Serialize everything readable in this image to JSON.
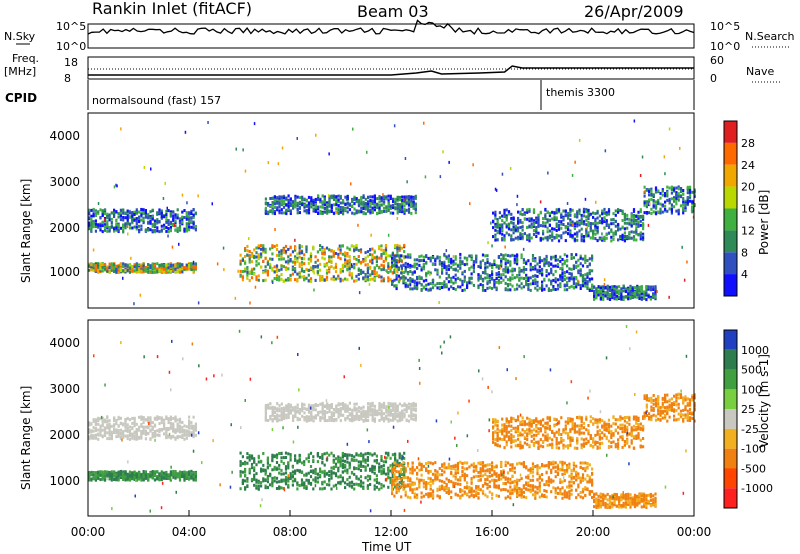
{
  "header": {
    "title": "Rankin Inlet (fitACF)",
    "beam": "Beam 03",
    "date": "26/Apr/2009"
  },
  "params_panel": {
    "nsky_label": "N.Sky",
    "nsky_ticks": [
      "10^5",
      "10^0"
    ],
    "nsearch_label": "N.Search",
    "nsearch_ticks": [
      "10^5",
      "10^0"
    ],
    "freq_label": "Freq.",
    "freq_unit": "[MHz]",
    "freq_ticks": [
      "18",
      "8"
    ],
    "nave_label": "Nave",
    "nave_ticks": [
      "60",
      "0"
    ],
    "cpid_label": "CPID",
    "cpid_segments": [
      {
        "text": "normalsound (fast) 157",
        "start_hour": 0
      },
      {
        "text": "themis 3300",
        "start_hour": 18
      }
    ]
  },
  "chart_data": [
    {
      "type": "heatmap",
      "title": "",
      "ylabel": "Slant Range [km]",
      "xlabel": "",
      "xlim": [
        0,
        24
      ],
      "ylim": [
        180,
        4500
      ],
      "ytick_labels": [
        "1000",
        "2000",
        "3000",
        "4000"
      ],
      "colorbar": {
        "label": "Power [dB]",
        "tick_labels": [
          "28",
          "24",
          "20",
          "16",
          "12",
          "8",
          "4"
        ],
        "colors": [
          "#e02020",
          "#ff6a00",
          "#f0a800",
          "#b8d800",
          "#40b040",
          "#2e8b57",
          "#3050c0",
          "#1010ff"
        ]
      }
    },
    {
      "type": "heatmap",
      "title": "",
      "ylabel": "Slant Range [km]",
      "xlabel": "Time UT",
      "xlim": [
        0,
        24
      ],
      "ylim": [
        180,
        4500
      ],
      "ytick_labels": [
        "1000",
        "2000",
        "3000",
        "4000"
      ],
      "xtick_labels": [
        "00:00",
        "04:00",
        "08:00",
        "12:00",
        "16:00",
        "20:00",
        "00:00"
      ],
      "colorbar": {
        "label": "Velocity [m s-1]",
        "tick_labels": [
          "1000",
          "500",
          "100",
          "25",
          "-25",
          "-100",
          "-500",
          "-1000"
        ],
        "colors": [
          "#2040c0",
          "#2e7d4f",
          "#40a040",
          "#78d040",
          "#c8c8c0",
          "#f0b020",
          "#f08010",
          "#ff4500",
          "#ff2020"
        ]
      }
    }
  ]
}
